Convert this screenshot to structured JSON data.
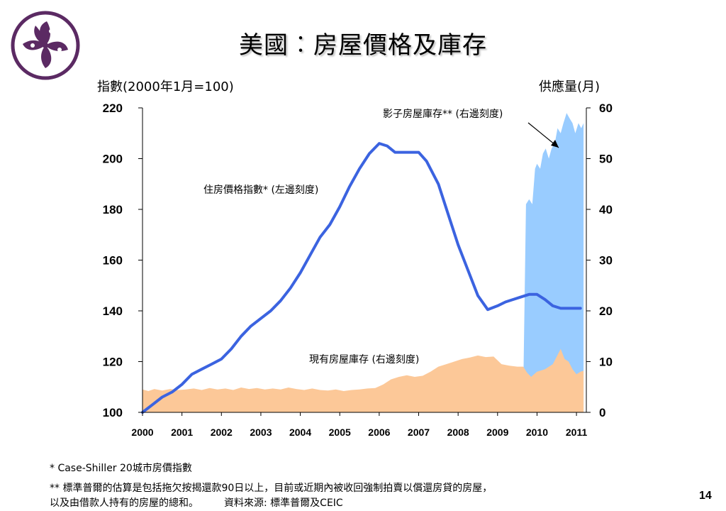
{
  "title": "美國︰房屋價格及庫存",
  "left_axis_title": "指數(2000年1月=100)",
  "right_axis_title": "供應量(月)",
  "colors": {
    "logo": "#5b2a63",
    "price_line": "#3b63e0",
    "shadow_fill": "#99ccff",
    "existing_fill": "#fcc898"
  },
  "footnotes": {
    "line1": "* Case-Shiller 20城市房價指數",
    "line2": "** 標準普爾的估算是包括拖欠按揭還款90日以上，目前或近期內被收回強制拍賣以償還房貸的房屋，",
    "line3": "以及由借款人持有的房屋的總和。",
    "source": "資料來源: 標準普爾及CEIC"
  },
  "page_number": "14",
  "chart_data": {
    "type": "line",
    "y_left": {
      "label": "指數(2000年1月=100)",
      "ylim": [
        100,
        220
      ],
      "ticks": [
        "100",
        "120",
        "140",
        "160",
        "180",
        "200",
        "220"
      ]
    },
    "y_right": {
      "label": "供應量(月)",
      "ylim": [
        0,
        60
      ],
      "ticks": [
        "0",
        "10",
        "20",
        "30",
        "40",
        "50",
        "60"
      ]
    },
    "x_range": [
      2000.0,
      2011.25
    ],
    "x_ticks": [
      "2000",
      "2001",
      "2002",
      "2003",
      "2004",
      "2005",
      "2006",
      "2007",
      "2008",
      "2009",
      "2010",
      "2011"
    ],
    "annotations": {
      "price": "住房價格指數* (左邊刻度)",
      "shadow": "影子房屋庫存** (右邊刻度)",
      "existing": "現有房屋庫存 (右邊刻度)"
    },
    "series": [
      {
        "name": "住房價格指數* (左邊刻度)",
        "axis": "left",
        "kind": "line",
        "x": [
          2000.0,
          2000.25,
          2000.5,
          2000.75,
          2001.0,
          2001.25,
          2001.5,
          2001.75,
          2002.0,
          2002.25,
          2002.5,
          2002.75,
          2003.0,
          2003.25,
          2003.5,
          2003.75,
          2004.0,
          2004.25,
          2004.5,
          2004.75,
          2005.0,
          2005.25,
          2005.5,
          2005.75,
          2006.0,
          2006.2,
          2006.4,
          2006.6,
          2006.8,
          2007.0,
          2007.2,
          2007.5,
          2007.75,
          2008.0,
          2008.25,
          2008.5,
          2008.75,
          2009.0,
          2009.2,
          2009.4,
          2009.6,
          2009.8,
          2010.0,
          2010.2,
          2010.4,
          2010.6,
          2010.8,
          2011.0,
          2011.1
        ],
        "y": [
          100,
          103,
          106,
          108,
          111,
          115,
          117,
          119,
          121,
          125,
          130,
          134,
          137,
          140,
          144,
          149,
          155,
          162,
          169,
          174,
          181,
          189,
          196,
          202,
          206,
          205,
          202.5,
          202.5,
          202.5,
          202.5,
          199,
          190,
          178,
          166,
          156,
          146,
          140.5,
          142,
          143.5,
          144.5,
          145.5,
          146.5,
          146.5,
          144.5,
          142,
          141,
          141,
          141,
          141
        ]
      },
      {
        "name": "影子房屋庫存** (右邊刻度)",
        "axis": "right",
        "kind": "area",
        "x": [
          2009.65,
          2009.72,
          2009.8,
          2009.88,
          2009.95,
          2010.0,
          2010.08,
          2010.15,
          2010.22,
          2010.3,
          2010.37,
          2010.45,
          2010.52,
          2010.6,
          2010.67,
          2010.75,
          2010.82,
          2010.9,
          2010.97,
          2011.05,
          2011.12,
          2011.18
        ],
        "y": [
          4,
          41,
          42,
          41,
          48,
          49,
          48,
          51,
          52,
          50,
          52,
          53,
          56,
          55,
          57,
          59,
          58,
          57,
          55,
          57,
          56,
          57
        ]
      },
      {
        "name": "現有房屋庫存 (右邊刻度)",
        "axis": "right",
        "kind": "area",
        "x": [
          2000.0,
          2000.15,
          2000.3,
          2000.5,
          2000.7,
          2000.9,
          2001.1,
          2001.3,
          2001.5,
          2001.7,
          2001.9,
          2002.1,
          2002.3,
          2002.5,
          2002.7,
          2002.9,
          2003.1,
          2003.3,
          2003.5,
          2003.7,
          2003.9,
          2004.1,
          2004.3,
          2004.5,
          2004.7,
          2004.9,
          2005.1,
          2005.3,
          2005.5,
          2005.7,
          2005.9,
          2006.1,
          2006.3,
          2006.5,
          2006.7,
          2006.9,
          2007.1,
          2007.3,
          2007.5,
          2007.7,
          2007.9,
          2008.1,
          2008.3,
          2008.5,
          2008.7,
          2008.9,
          2009.1,
          2009.3,
          2009.5,
          2009.65,
          2009.75,
          2009.85,
          2010.0,
          2010.2,
          2010.4,
          2010.5,
          2010.6,
          2010.7,
          2010.8,
          2010.9,
          2011.0,
          2011.1,
          2011.18
        ],
        "y": [
          4.5,
          4.2,
          4.6,
          4.3,
          4.6,
          4.4,
          4.5,
          4.7,
          4.4,
          4.8,
          4.5,
          4.7,
          4.4,
          4.9,
          4.6,
          4.8,
          4.5,
          4.7,
          4.5,
          4.9,
          4.6,
          4.4,
          4.7,
          4.4,
          4.3,
          4.5,
          4.2,
          4.4,
          4.5,
          4.7,
          4.8,
          5.5,
          6.5,
          7.0,
          7.3,
          7.0,
          7.2,
          8.0,
          9.0,
          9.5,
          10.0,
          10.5,
          10.8,
          11.2,
          10.9,
          11.0,
          9.5,
          9.2,
          9.0,
          9.0,
          7.8,
          7.0,
          8.0,
          8.5,
          9.5,
          11.0,
          12.5,
          10.5,
          10.0,
          8.5,
          7.5,
          8.0,
          8.2
        ]
      }
    ]
  }
}
